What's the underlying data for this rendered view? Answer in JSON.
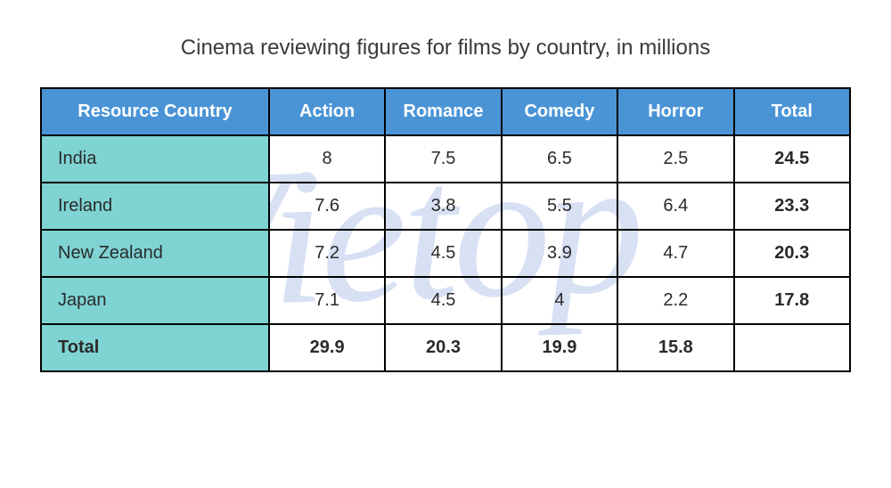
{
  "title": "Cinema reviewing figures for films by country, in millions",
  "watermark": "Vietop",
  "table": {
    "type": "table",
    "header_bg": "#4a94d6",
    "header_fg": "#ffffff",
    "firstcol_bg": "#7fd3d3",
    "border_color": "#000000",
    "columns": [
      "Resource Country",
      "Action",
      "Romance",
      "Comedy",
      "Horror",
      "Total"
    ],
    "rows": [
      {
        "country": "India",
        "action": "8",
        "romance": "7.5",
        "comedy": "6.5",
        "horror": "2.5",
        "total": "24.5"
      },
      {
        "country": "Ireland",
        "action": "7.6",
        "romance": "3.8",
        "comedy": "5.5",
        "horror": "6.4",
        "total": "23.3"
      },
      {
        "country": "New Zealand",
        "action": "7.2",
        "romance": "4.5",
        "comedy": "3.9",
        "horror": "4.7",
        "total": "20.3"
      },
      {
        "country": "Japan",
        "action": "7.1",
        "romance": "4.5",
        "comedy": "4",
        "horror": "2.2",
        "total": "17.8"
      }
    ],
    "footer": {
      "label": "Total",
      "action": "29.9",
      "romance": "20.3",
      "comedy": "19.9",
      "horror": "15.8",
      "total": ""
    }
  }
}
